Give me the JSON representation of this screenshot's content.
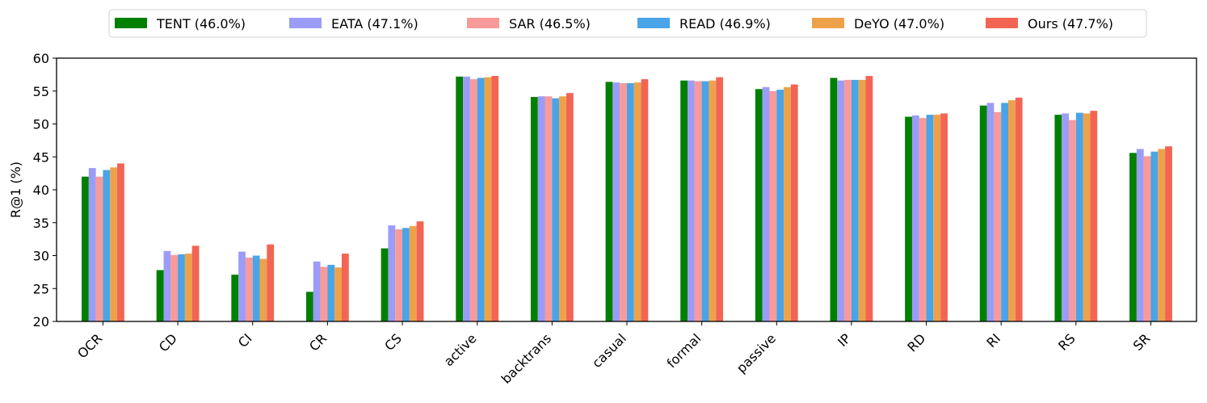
{
  "chart_data": {
    "type": "bar",
    "ylabel": "R@1 (%)",
    "xlabel": "",
    "ylim": [
      20,
      60
    ],
    "yticks": [
      20,
      25,
      30,
      35,
      40,
      45,
      50,
      55,
      60
    ],
    "grid": false,
    "legend_position": "top-center",
    "categories": [
      "OCR",
      "CD",
      "CI",
      "CR",
      "CS",
      "active",
      "backtrans",
      "casual",
      "formal",
      "passive",
      "IP",
      "RD",
      "RI",
      "RS",
      "SR"
    ],
    "series": [
      {
        "name": "TENT (46.0%)",
        "color": "#008000",
        "values": [
          42.0,
          27.8,
          27.1,
          24.5,
          31.1,
          57.2,
          54.1,
          56.4,
          56.6,
          55.3,
          57.0,
          51.1,
          52.8,
          51.4,
          45.6
        ]
      },
      {
        "name": "EATA (47.1%)",
        "color": "#9b9cf7",
        "values": [
          43.3,
          30.7,
          30.6,
          29.1,
          34.6,
          57.2,
          54.2,
          56.3,
          56.6,
          55.6,
          56.6,
          51.3,
          53.2,
          51.6,
          46.2
        ]
      },
      {
        "name": "SAR (46.5%)",
        "color": "#f89a9a",
        "values": [
          42.0,
          30.1,
          29.7,
          28.3,
          34.0,
          56.8,
          54.2,
          56.2,
          56.5,
          55.0,
          56.7,
          50.9,
          51.8,
          50.6,
          45.1
        ]
      },
      {
        "name": "READ (46.9%)",
        "color": "#49a4e8",
        "values": [
          43.0,
          30.2,
          30.0,
          28.6,
          34.2,
          57.0,
          53.9,
          56.2,
          56.5,
          55.2,
          56.7,
          51.4,
          53.2,
          51.7,
          45.8
        ]
      },
      {
        "name": "DeYO (47.0%)",
        "color": "#eda24a",
        "values": [
          43.4,
          30.3,
          29.5,
          28.2,
          34.5,
          57.1,
          54.2,
          56.3,
          56.6,
          55.6,
          56.7,
          51.4,
          53.6,
          51.6,
          46.2
        ]
      },
      {
        "name": "Ours (47.7%)",
        "color": "#f26554",
        "values": [
          44.0,
          31.5,
          31.7,
          30.3,
          35.2,
          57.3,
          54.7,
          56.8,
          57.1,
          56.0,
          57.3,
          51.6,
          54.0,
          52.0,
          46.6
        ]
      }
    ]
  }
}
